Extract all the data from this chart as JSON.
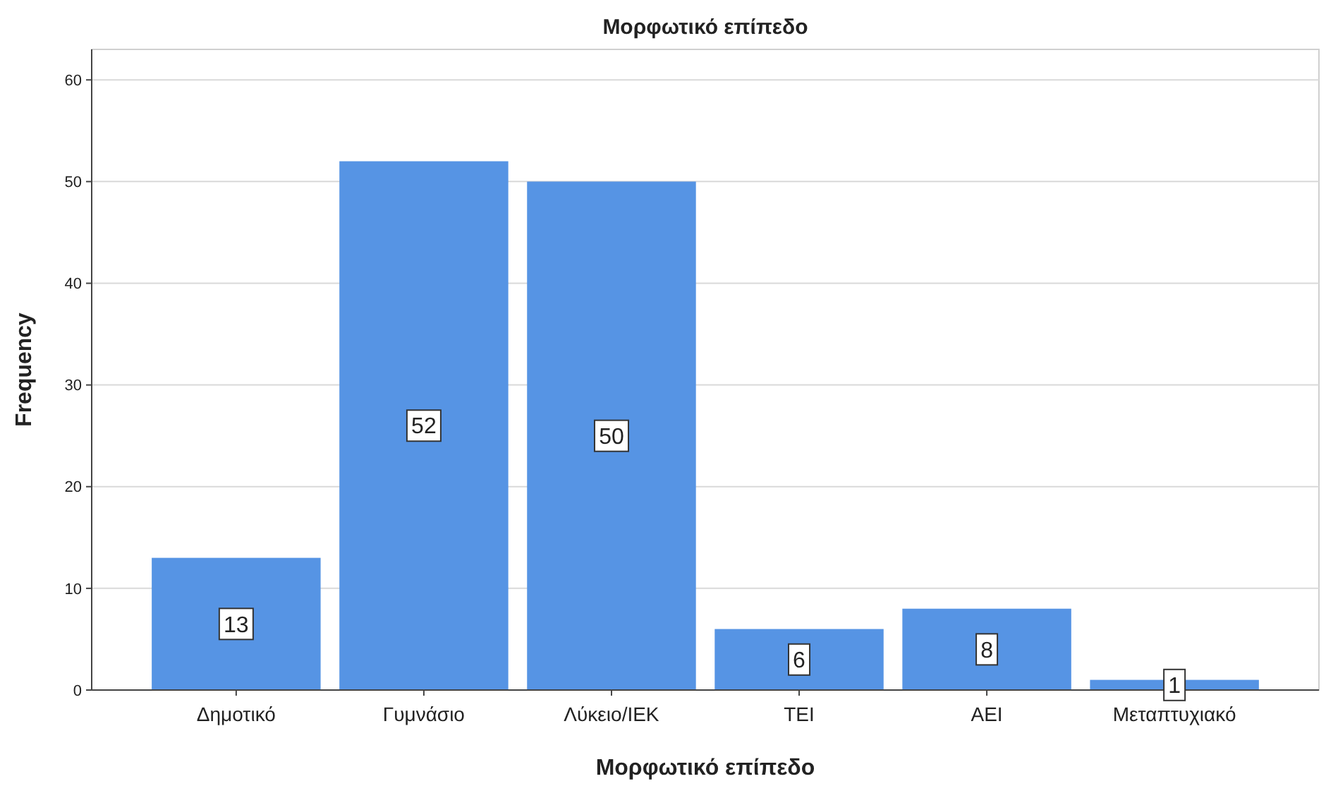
{
  "chart_data": {
    "type": "bar",
    "title": "Μορφωτικό επίπεδο",
    "xlabel": "Μορφωτικό επίπεδο",
    "ylabel": "Frequency",
    "categories": [
      "Δημοτικό",
      "Γυμνάσιο",
      "Λύκειο/ΙΕΚ",
      "ΤΕΙ",
      "ΑΕΙ",
      "Μεταπτυχιακό"
    ],
    "values": [
      13,
      52,
      50,
      6,
      8,
      1
    ],
    "color": "#5694e4",
    "ylim": [
      0,
      63
    ],
    "yticks": [
      0,
      10,
      20,
      30,
      40,
      50,
      60
    ],
    "grid": "y",
    "data_labels": true
  }
}
